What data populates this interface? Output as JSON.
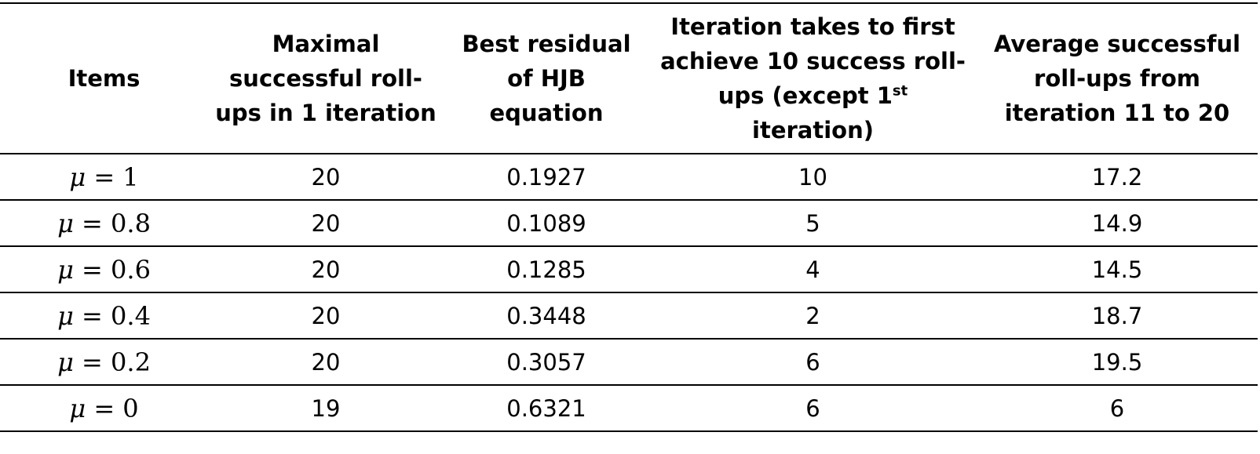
{
  "table": {
    "headers": {
      "items": "Items",
      "maximal": "Maximal successful roll-ups in 1 iteration",
      "best_residual": "Best residual of HJB equation",
      "iteration_first_pre": "Iteration takes to first achieve 10 success roll-ups (except 1",
      "iteration_first_sup": "st",
      "iteration_first_post": " iteration)",
      "average": "Average successful roll-ups from iteration 11 to 20"
    },
    "rows": [
      {
        "mu_symbol": "μ",
        "eq": " = ",
        "mu_value": "1",
        "maximal": "20",
        "residual": "0.1927",
        "first_iteration": "10",
        "average": "17.2"
      },
      {
        "mu_symbol": "μ",
        "eq": " = ",
        "mu_value": "0.8",
        "maximal": "20",
        "residual": "0.1089",
        "first_iteration": "5",
        "average": "14.9"
      },
      {
        "mu_symbol": "μ",
        "eq": " = ",
        "mu_value": "0.6",
        "maximal": "20",
        "residual": "0.1285",
        "first_iteration": "4",
        "average": "14.5"
      },
      {
        "mu_symbol": "μ",
        "eq": " = ",
        "mu_value": "0.4",
        "maximal": "20",
        "residual": "0.3448",
        "first_iteration": "2",
        "average": "18.7"
      },
      {
        "mu_symbol": "μ",
        "eq": " = ",
        "mu_value": "0.2",
        "maximal": "20",
        "residual": "0.3057",
        "first_iteration": "6",
        "average": "19.5"
      },
      {
        "mu_symbol": "μ",
        "eq": " = ",
        "mu_value": "0",
        "maximal": "19",
        "residual": "0.6321",
        "first_iteration": "6",
        "average": "6"
      }
    ]
  }
}
